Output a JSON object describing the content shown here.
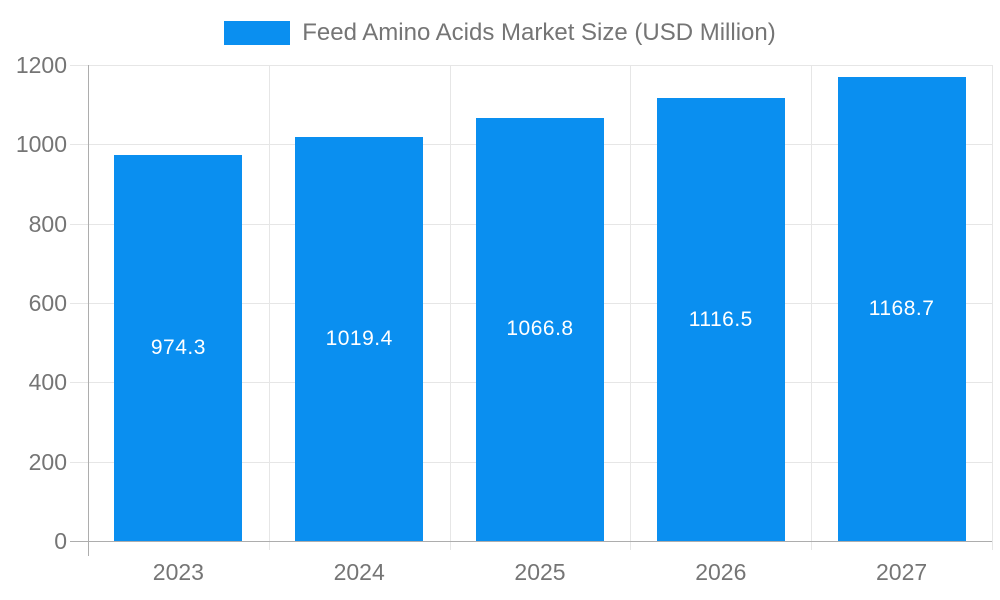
{
  "chart_data": {
    "type": "bar",
    "title": "Feed Amino Acids Market Size (USD Million)",
    "categories": [
      "2023",
      "2024",
      "2025",
      "2026",
      "2027"
    ],
    "values": [
      974.3,
      1019.4,
      1066.8,
      1116.5,
      1168.7
    ],
    "bar_labels": [
      "974.3",
      "1019.4",
      "1066.8",
      "1116.5",
      "1168.7"
    ],
    "xlabel": "",
    "ylabel": "",
    "ylim": [
      0,
      1200
    ],
    "yticks": [
      0,
      200,
      400,
      600,
      800,
      1000,
      1200
    ],
    "ytick_labels": [
      "0",
      "200",
      "400",
      "600",
      "800",
      "1000",
      "1200"
    ],
    "grid": true,
    "legend_position": "top-center",
    "colors": {
      "bar": "#0a8ff0",
      "grid": "#e6e6e6",
      "axis": "#adadad",
      "tick_label": "#757575",
      "bar_label": "#ffffff",
      "background": "#ffffff"
    }
  }
}
